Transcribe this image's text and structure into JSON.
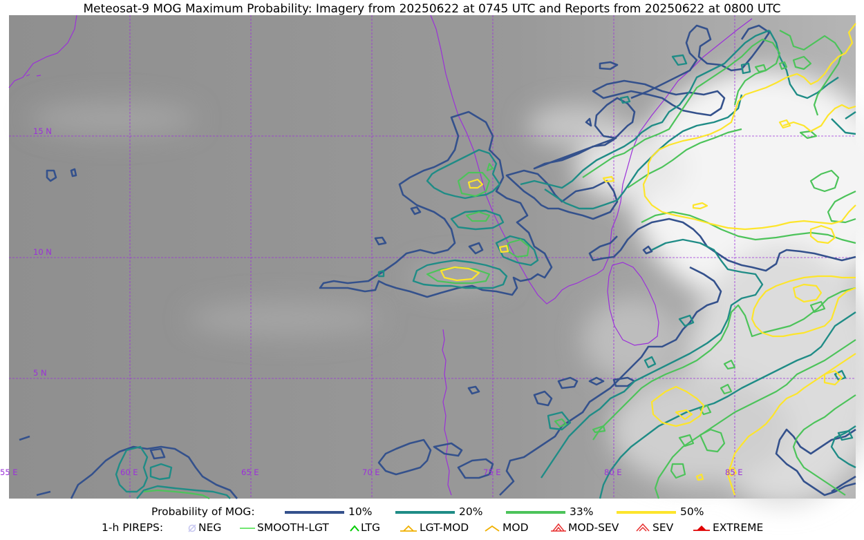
{
  "title": "Meteosat-9 MOG Maximum Probability: Imagery from 20250622 at 0745 UTC and Reports from 20250622 at 0800 UTC",
  "map": {
    "lat_labels": [
      "15 N",
      "10 N",
      "5 N"
    ],
    "lon_labels": [
      "55 E",
      "60 E",
      "65 E",
      "70 E",
      "75 E",
      "80 E",
      "85 E"
    ],
    "gridline_color": "#9b30d9",
    "coastline_color": "#9b30d9"
  },
  "probability_legend": {
    "label": "Probability of MOG:",
    "levels": [
      {
        "label": "10%",
        "color": "#34518c"
      },
      {
        "label": "20%",
        "color": "#1f8c86"
      },
      {
        "label": "33%",
        "color": "#4cc35a"
      },
      {
        "label": "50%",
        "color": "#fde52b"
      }
    ]
  },
  "pirep_legend": {
    "label": "1-h PIREPS:",
    "items": [
      {
        "label": "NEG",
        "icon": "neg-icon",
        "color": "#c8c8f0"
      },
      {
        "label": "SMOOTH-LGT",
        "icon": "smooth-lgt-icon",
        "color": "#44dd44"
      },
      {
        "label": "LTG",
        "icon": "ltg-icon",
        "color": "#00cc00"
      },
      {
        "label": "LGT-MOD",
        "icon": "lgt-mod-icon",
        "color": "#f0b000"
      },
      {
        "label": "MOD",
        "icon": "mod-icon",
        "color": "#f0b000"
      },
      {
        "label": "MOD-SEV",
        "icon": "mod-sev-icon",
        "color": "#e83030"
      },
      {
        "label": "SEV",
        "icon": "sev-icon",
        "color": "#e83030"
      },
      {
        "label": "EXTREME",
        "icon": "extreme-icon",
        "color": "#e00000"
      }
    ]
  }
}
